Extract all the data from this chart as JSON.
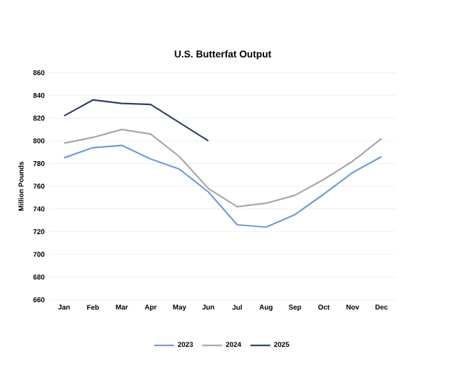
{
  "chart_data": {
    "type": "line",
    "title": "U.S. Butterfat Output",
    "ylabel": "Million Pounds",
    "categories": [
      "Jan",
      "Feb",
      "Mar",
      "Apr",
      "May",
      "Jun",
      "Jul",
      "Aug",
      "Sep",
      "Oct",
      "Nov",
      "Dec"
    ],
    "series": [
      {
        "name": "2023",
        "color": "#6f9bd6",
        "values": [
          785,
          794,
          796,
          784,
          775,
          755,
          726,
          724,
          735,
          753,
          772,
          786
        ]
      },
      {
        "name": "2024",
        "color": "#a6a6a6",
        "values": [
          798,
          803,
          810,
          806,
          786,
          758,
          742,
          745,
          752,
          766,
          782,
          802
        ]
      },
      {
        "name": "2025",
        "color": "#2c3e66",
        "values": [
          822,
          836,
          833,
          832,
          816,
          800,
          null,
          null,
          null,
          null,
          null,
          null
        ]
      }
    ],
    "ylim": [
      660,
      860
    ],
    "yticks": [
      660,
      680,
      700,
      720,
      740,
      760,
      780,
      800,
      820,
      840,
      860
    ],
    "grid": "y",
    "legend": "bottom",
    "line_style": "solid",
    "marker": "none"
  }
}
